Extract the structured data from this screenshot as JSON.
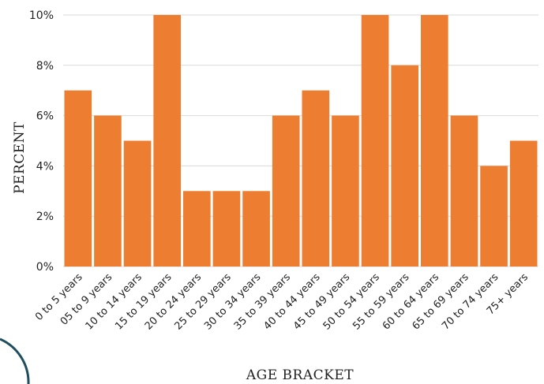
{
  "chart_data": {
    "type": "bar",
    "categories": [
      "0 to 5 years",
      "05 to 9 years",
      "10 to 14 years",
      "15 to 19 years",
      "20 to 24 years",
      "25 to 29 years",
      "30 to 34 years",
      "35 to 39 years",
      "40 to 44 years",
      "45 to 49 years",
      "50 to 54 years",
      "55 to 59 years",
      "60 to 64 years",
      "65 to 69 years",
      "70 to 74 years",
      "75+ years"
    ],
    "values": [
      7,
      6,
      5,
      10,
      3,
      3,
      3,
      6,
      7,
      6,
      10,
      8,
      10,
      6,
      4,
      5
    ],
    "xlabel": "AGE BRACKET",
    "ylabel": "PERCENT",
    "ylim": [
      0,
      10
    ],
    "yticks": [
      "0%",
      "2%",
      "4%",
      "6%",
      "8%",
      "10%"
    ],
    "grid": true,
    "bar_color": "#ED7D31",
    "grid_color": "#D9D9D9"
  }
}
